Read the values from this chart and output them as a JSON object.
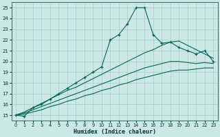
{
  "xlabel": "Humidex (Indice chaleur)",
  "bg_color": "#cce8e4",
  "grid_color": "#aacccc",
  "line_color": "#006655",
  "xlim": [
    -0.5,
    23.5
  ],
  "ylim": [
    14.5,
    25.5
  ],
  "yticks": [
    15,
    16,
    17,
    18,
    19,
    20,
    21,
    22,
    23,
    24,
    25
  ],
  "xticks": [
    0,
    1,
    2,
    3,
    4,
    5,
    6,
    7,
    8,
    9,
    10,
    11,
    12,
    13,
    14,
    15,
    16,
    17,
    18,
    19,
    20,
    21,
    22,
    23
  ],
  "main_y": [
    15.0,
    14.9,
    15.7,
    16.0,
    16.5,
    17.0,
    17.5,
    18.0,
    18.5,
    19.0,
    19.5,
    22.0,
    22.5,
    23.5,
    25.0,
    25.0,
    22.5,
    21.7,
    21.8,
    21.3,
    21.0,
    20.7,
    21.0,
    20.0
  ],
  "line1_y": [
    15.0,
    15.3,
    15.7,
    16.1,
    16.5,
    16.9,
    17.3,
    17.6,
    18.0,
    18.4,
    18.8,
    19.2,
    19.6,
    20.0,
    20.4,
    20.8,
    21.1,
    21.5,
    21.8,
    21.9,
    21.5,
    21.1,
    20.7,
    20.3
  ],
  "line2_y": [
    15.0,
    15.2,
    15.5,
    15.8,
    16.1,
    16.4,
    16.7,
    17.0,
    17.3,
    17.6,
    17.9,
    18.2,
    18.5,
    18.8,
    19.1,
    19.4,
    19.6,
    19.8,
    20.0,
    20.0,
    19.9,
    19.8,
    19.9,
    19.8
  ],
  "line3_y": [
    15.0,
    15.1,
    15.3,
    15.5,
    15.8,
    16.0,
    16.3,
    16.5,
    16.8,
    17.0,
    17.3,
    17.5,
    17.8,
    18.0,
    18.3,
    18.5,
    18.7,
    18.9,
    19.1,
    19.2,
    19.2,
    19.3,
    19.4,
    19.4
  ]
}
